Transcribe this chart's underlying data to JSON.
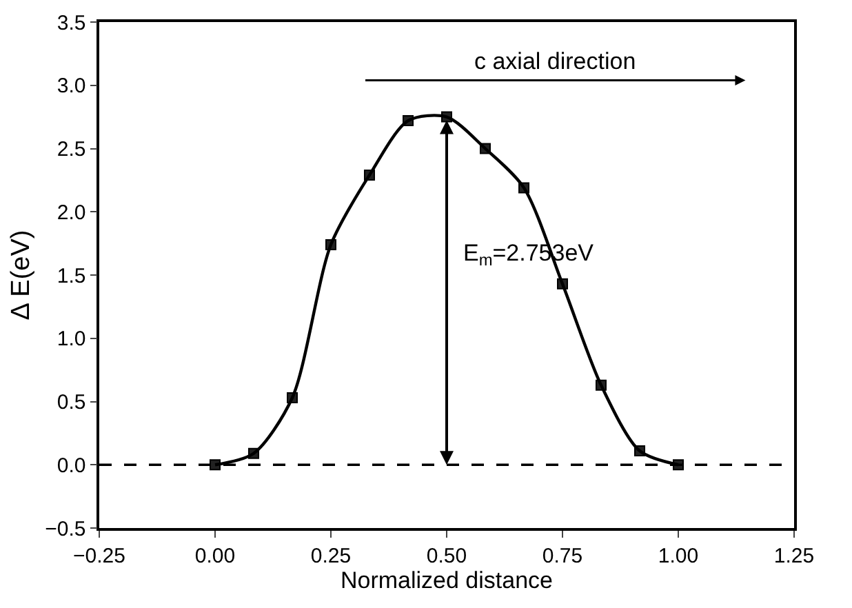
{
  "chart_data": {
    "type": "scatter",
    "xlabel": "Normalized distance",
    "ylabel": "Δ E(eV)",
    "x": [
      0,
      0.0833,
      0.1667,
      0.25,
      0.3333,
      0.4167,
      0.5,
      0.5833,
      0.6667,
      0.75,
      0.8333,
      0.9167,
      1.0
    ],
    "series": [
      {
        "color": "#222222",
        "marker": "square",
        "values": [
          0.0,
          0.09,
          0.53,
          1.74,
          2.29,
          2.72,
          2.75,
          2.5,
          2.19,
          1.43,
          0.63,
          0.11,
          0.0
        ]
      },
      {
        "type": "line",
        "color": "#000000",
        "marker": "none",
        "line_style": "solid",
        "values": [
          0.0,
          0.09,
          0.53,
          1.74,
          2.29,
          2.72,
          2.75,
          2.5,
          2.19,
          1.43,
          0.63,
          0.11,
          0.0
        ]
      }
    ],
    "xlim": [
      -0.25,
      1.25
    ],
    "xticks": [
      {
        "value": -0.25,
        "label": "−0.25"
      },
      {
        "value": 0,
        "label": "0.00"
      },
      {
        "value": 0.25,
        "label": "0.25"
      },
      {
        "value": 0.5,
        "label": "0.50"
      },
      {
        "value": 0.75,
        "label": "0.75"
      },
      {
        "value": 1,
        "label": "1.00"
      },
      {
        "value": 1.25,
        "label": "1.25"
      }
    ],
    "ylim": [
      -0.5,
      3.5
    ],
    "yticks": [
      {
        "value": -0.5,
        "label": "−0.5"
      },
      {
        "value": 0,
        "label": "0.0"
      },
      {
        "value": 0.5,
        "label": "0.5"
      },
      {
        "value": 1,
        "label": "1.0"
      },
      {
        "value": 1.5,
        "label": "1.5"
      },
      {
        "value": 2,
        "label": "2.0"
      },
      {
        "value": 2.5,
        "label": "2.5"
      },
      {
        "value": 3,
        "label": "3.0"
      },
      {
        "value": 3.5,
        "label": "3.5"
      }
    ],
    "ref_lines": [
      {
        "axis": "y",
        "value": 0,
        "color": "#000000",
        "line_style": "dashed"
      }
    ],
    "annotations": [
      "c axial direction",
      "E$_{m}$=2.753eV"
    ]
  }
}
